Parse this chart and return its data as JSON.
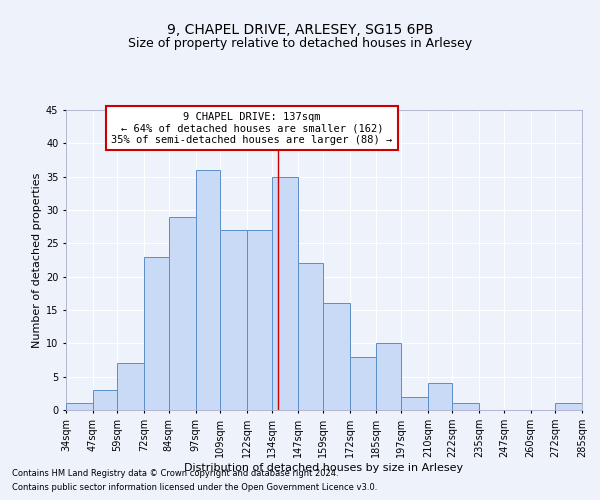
{
  "title1": "9, CHAPEL DRIVE, ARLESEY, SG15 6PB",
  "title2": "Size of property relative to detached houses in Arlesey",
  "xlabel": "Distribution of detached houses by size in Arlesey",
  "ylabel": "Number of detached properties",
  "footnote1": "Contains HM Land Registry data © Crown copyright and database right 2024.",
  "footnote2": "Contains public sector information licensed under the Open Government Licence v3.0.",
  "annotation_line1": "9 CHAPEL DRIVE: 137sqm",
  "annotation_line2": "← 64% of detached houses are smaller (162)",
  "annotation_line3": "35% of semi-detached houses are larger (88) →",
  "property_size": 137,
  "bin_edges": [
    34,
    47,
    59,
    72,
    84,
    97,
    109,
    122,
    134,
    147,
    159,
    172,
    185,
    197,
    210,
    222,
    235,
    247,
    260,
    272,
    285
  ],
  "bar_heights": [
    1,
    3,
    7,
    23,
    29,
    36,
    27,
    27,
    35,
    22,
    16,
    8,
    10,
    2,
    4,
    1,
    0,
    0,
    0,
    1
  ],
  "bar_color": "#c8daf5",
  "bar_edge_color": "#5a8fcb",
  "vline_color": "#cc0000",
  "vline_x": 137,
  "ylim": [
    0,
    45
  ],
  "yticks": [
    0,
    5,
    10,
    15,
    20,
    25,
    30,
    35,
    40,
    45
  ],
  "bg_color": "#eef2fb",
  "grid_color": "#ffffff",
  "annotation_box_color": "#cc0000",
  "title_fontsize": 10,
  "subtitle_fontsize": 9,
  "tick_label_fontsize": 7,
  "axis_label_fontsize": 8,
  "footnote_fontsize": 6,
  "annotation_fontsize": 7.5
}
